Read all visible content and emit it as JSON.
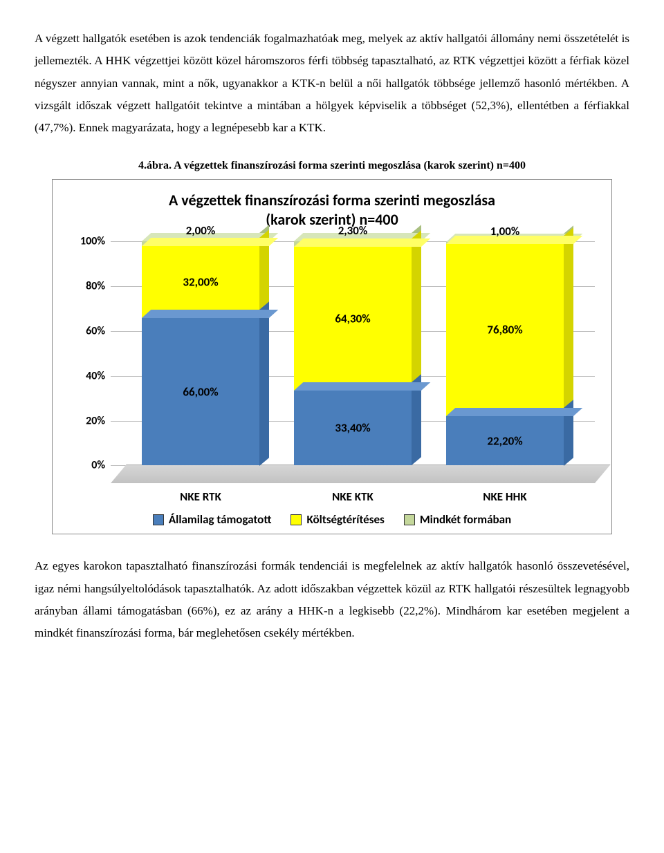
{
  "para1": "A végzett hallgatók esetében is azok tendenciák fogalmazhatóak meg, melyek az aktív hallgatói állomány nemi összetételét is jellemezték. A HHK végzettjei között közel háromszoros férfi többség tapasztalható, az RTK végzettjei között a férfiak közel négyszer annyian vannak, mint a nők, ugyanakkor a KTK-n belül a női hallgatók többsége jellemző hasonló mértékben.  A vizsgált időszak végzett hallgatóit tekintve a mintában a hölgyek képviselik a többséget (52,3%), ellentétben a férfiakkal (47,7%). Ennek magyarázata, hogy a legnépesebb kar a KTK.",
  "caption": "4.ábra. A végzettek finanszírozási forma szerinti megoszlása (karok szerint) n=400",
  "chart": {
    "title_line1": "A végzettek finanszírozási forma szerinti megoszlása",
    "title_line2": "(karok szerint) n=400",
    "y_ticks": [
      "0%",
      "20%",
      "40%",
      "60%",
      "80%",
      "100%"
    ],
    "categories": [
      "NKE RTK",
      "NKE KTK",
      "NKE HHK"
    ],
    "series": {
      "s1": {
        "label": "Államilag támogatott",
        "color": "#4a7ebb",
        "color_top": "#6a98d0",
        "color_side": "#3a6aa3"
      },
      "s2": {
        "label": "Költségtérítéses",
        "color": "#ffff00",
        "color_top": "#ffff66",
        "color_side": "#d4d400"
      },
      "s3": {
        "label": "Mindkét formában",
        "color": "#c4d79b",
        "color_top": "#d7e6b9",
        "color_side": "#a9bf80"
      }
    },
    "stacks": [
      {
        "s1": {
          "v": 66.0,
          "label": "66,00%"
        },
        "s2": {
          "v": 32.0,
          "label": "32,00%"
        },
        "s3": {
          "v": 2.0,
          "label": "2,00%"
        }
      },
      {
        "s1": {
          "v": 33.4,
          "label": "33,40%"
        },
        "s2": {
          "v": 64.3,
          "label": "64,30%"
        },
        "s3": {
          "v": 2.3,
          "label": "2,30%"
        }
      },
      {
        "s1": {
          "v": 22.2,
          "label": "22,20%"
        },
        "s2": {
          "v": 76.8,
          "label": "76,80%"
        },
        "s3": {
          "v": 1.0,
          "label": "1,00%"
        }
      }
    ],
    "y_max_display": 100,
    "bar_scale": 1.08
  },
  "para2": "Az egyes karokon tapasztalható finanszírozási formák tendenciái is megfelelnek az aktív hallgatók hasonló összevetésével, igaz némi hangsúlyeltolódások tapasztalhatók. Az adott időszakban végzettek közül az RTK hallgatói részesültek legnagyobb arányban állami támogatásban (66%), ez az arány a HHK-n a legkisebb (22,2%). Mindhárom kar esetében megjelent a mindkét finanszírozási forma, bár meglehetősen csekély mértékben."
}
